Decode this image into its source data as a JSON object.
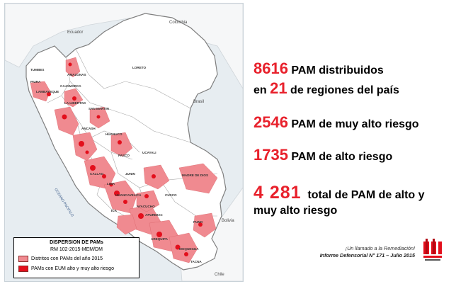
{
  "map": {
    "countries": [
      "Ecuador",
      "Colombia",
      "Brasil",
      "Bolivia",
      "Chile"
    ],
    "ocean": "OCEANO PACIFICO",
    "regions": [
      "TUMBES",
      "PIURA",
      "LAMBAYEQUE",
      "CAJAMARCA",
      "AMAZONAS",
      "LORETO",
      "SAN MARTIN",
      "LA LIBERTAD",
      "ANCASH",
      "HUANUCO",
      "PASCO",
      "UCAYALI",
      "LIMA",
      "CALLAO",
      "JUNIN",
      "HUANCAVELICA",
      "ICA",
      "AYACUCHO",
      "CUSCO",
      "APURIMAC",
      "AREQUIPA",
      "MADRE DE DIOS",
      "PUNO",
      "MOQUEGUA",
      "TACNA"
    ],
    "colors": {
      "land": "#ffffff",
      "border": "#9a9a9a",
      "light": "#f08a90",
      "dark": "#e30f1c",
      "sea": "#e7edf1"
    }
  },
  "legend": {
    "title": "DISPERSION DE PAMs",
    "subtitle": "RM 102-2015-MEM/DM",
    "items": [
      {
        "label": "Distritos con PAMs del año 2015",
        "color": "#f08a90"
      },
      {
        "label": "PAMs con EUM alto y muy alto riesgo",
        "color": "#e30f1c"
      }
    ]
  },
  "stats": {
    "line1": {
      "num": "8616",
      "text": " PAM distribuidos"
    },
    "line2": {
      "pre": "en ",
      "num": "21",
      "text": " de regiones del país"
    },
    "line3": {
      "num": "2546",
      "text": " PAM de muy alto riesgo"
    },
    "line4": {
      "num": "1735",
      "text": " PAM de alto riesgo"
    },
    "line5": {
      "num": "4 281",
      "text": "  total de PAM de alto y"
    },
    "line6": "muy alto riesgo"
  },
  "footer": {
    "line1": "¡Un llamado  a la Remediación!",
    "line2": "Informe Defensorial  N° 171 – Julio 2015"
  },
  "accent": "#e8212c"
}
